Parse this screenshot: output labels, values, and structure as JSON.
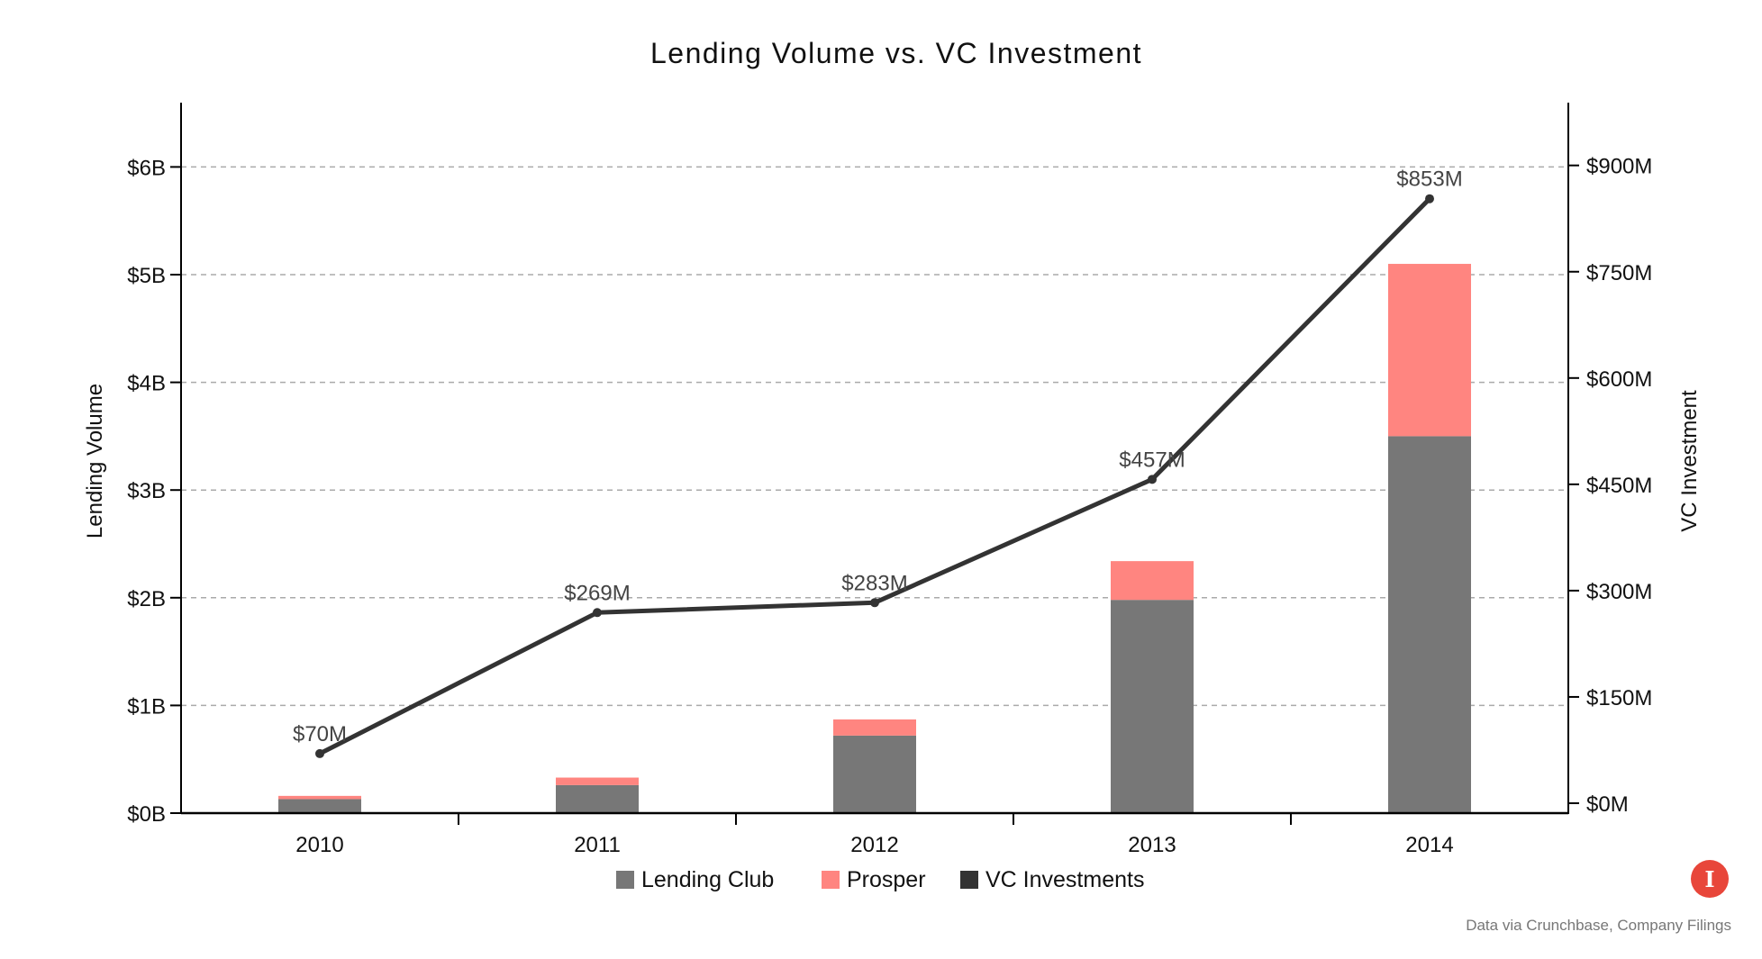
{
  "chart_data": {
    "type": "bar",
    "title": "Lending Volume vs. VC Investment",
    "categories": [
      "2010",
      "2011",
      "2012",
      "2013",
      "2014"
    ],
    "series": [
      {
        "name": "Lending Club",
        "type": "bar",
        "stacked": true,
        "axis": "left",
        "unit": "B",
        "color": "#777777",
        "values": [
          0.13,
          0.26,
          0.72,
          1.98,
          3.5
        ]
      },
      {
        "name": "Prosper",
        "type": "bar",
        "stacked": true,
        "axis": "left",
        "unit": "B",
        "color": "#ff8580",
        "values": [
          0.03,
          0.07,
          0.15,
          0.36,
          1.6
        ]
      },
      {
        "name": "VC Investments",
        "type": "line",
        "axis": "right",
        "unit": "M",
        "color": "#333333",
        "values": [
          70,
          269,
          283,
          457,
          853
        ],
        "labels": [
          "$70M",
          "$269M",
          "$283M",
          "$457M",
          "$853M"
        ]
      }
    ],
    "xlabel": "",
    "ylabel": "Lending Volume",
    "y2label": "VC Investment",
    "ylim": [
      0,
      6.6
    ],
    "y2lim": [
      0,
      990
    ],
    "yticks": [
      0,
      1,
      2,
      3,
      4,
      5,
      6
    ],
    "ytick_labels": [
      "$0B",
      "$1B",
      "$2B",
      "$3B",
      "$4B",
      "$5B",
      "$6B"
    ],
    "y2ticks": [
      0,
      150,
      300,
      450,
      600,
      750,
      900
    ],
    "y2tick_labels": [
      "$0M",
      "$150M",
      "$300M",
      "$450M",
      "$600M",
      "$750M",
      "$900M"
    ],
    "grid": {
      "y": true,
      "style": "dashed",
      "color": "#aaaaaa"
    },
    "legend": {
      "position": "bottom",
      "entries": [
        "Lending Club",
        "Prosper",
        "VC Investments"
      ]
    },
    "source": "Data via Crunchbase, Company Filings"
  },
  "footer": {
    "source_text": "Data via Crunchbase, Company Filings",
    "logo_glyph": "I",
    "logo_color": "#e8463a"
  }
}
